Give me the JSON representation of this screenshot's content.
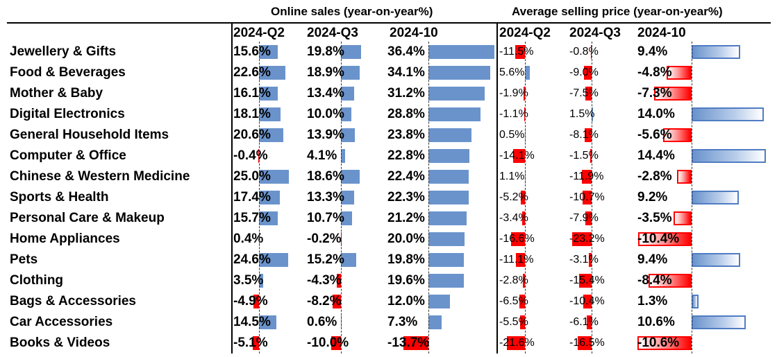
{
  "chart_data": {
    "type": "table",
    "groups": [
      {
        "title": "Online sales (year-on-year%)",
        "column_keys": [
          "sales_q2",
          "sales_q3",
          "sales_oct"
        ]
      },
      {
        "title": "Average selling price (year-on-year%)",
        "column_keys": [
          "asp_q2",
          "asp_q3",
          "asp_oct"
        ]
      }
    ],
    "columns": [
      {
        "key": "sales_q2",
        "label": "2024-Q2"
      },
      {
        "key": "sales_q3",
        "label": "2024-Q3"
      },
      {
        "key": "sales_oct",
        "label": "2024-10"
      },
      {
        "key": "asp_q2",
        "label": "2024-Q2"
      },
      {
        "key": "asp_q3",
        "label": "2024-Q3"
      },
      {
        "key": "asp_oct",
        "label": "2024-10"
      }
    ],
    "categories": [
      "Jewellery & Gifts",
      "Food & Beverages",
      "Mother & Baby",
      "Digital Electronics",
      "General Household Items",
      "Computer & Office",
      "Chinese & Western Medicine",
      "Sports & Health",
      "Personal Care & Makeup",
      "Home Appliances",
      "Pets",
      "Clothing",
      "Bags & Accessories",
      "Car Accessories",
      "Books & Videos"
    ],
    "series": [
      {
        "key": "sales_q2",
        "values": [
          15.6,
          22.6,
          16.1,
          18.1,
          20.6,
          -0.4,
          25.0,
          17.4,
          15.7,
          0.4,
          24.6,
          3.5,
          -4.9,
          14.5,
          -5.1
        ]
      },
      {
        "key": "sales_q3",
        "values": [
          19.8,
          18.9,
          13.4,
          10.0,
          13.9,
          4.1,
          18.6,
          13.3,
          10.7,
          -0.2,
          15.2,
          -4.3,
          -8.2,
          0.6,
          -10.0
        ]
      },
      {
        "key": "sales_oct",
        "values": [
          36.4,
          34.1,
          31.2,
          28.8,
          23.8,
          22.8,
          22.4,
          22.3,
          21.2,
          20.0,
          19.8,
          19.6,
          12.0,
          7.3,
          -13.7
        ]
      },
      {
        "key": "asp_q2",
        "values": [
          -11.5,
          5.6,
          -1.9,
          -1.1,
          0.5,
          -14.1,
          1.1,
          -5.2,
          -3.4,
          -16.6,
          -11.1,
          -2.8,
          -6.5,
          -5.5,
          -21.6
        ]
      },
      {
        "key": "asp_q3",
        "values": [
          -0.8,
          -9.0,
          -7.5,
          1.5,
          -8.1,
          -1.5,
          -11.9,
          -10.7,
          -7.9,
          -23.2,
          -3.1,
          -15.4,
          -10.4,
          -6.1,
          -16.5
        ]
      },
      {
        "key": "asp_oct",
        "values": [
          9.4,
          -4.8,
          -7.3,
          14.0,
          -5.6,
          14.4,
          -2.8,
          9.2,
          -3.5,
          -10.4,
          9.4,
          -8.4,
          1.3,
          10.6,
          -10.6
        ]
      }
    ],
    "bar_colors": {
      "positive": "#6a93cc",
      "negative": "#ff0000"
    }
  }
}
